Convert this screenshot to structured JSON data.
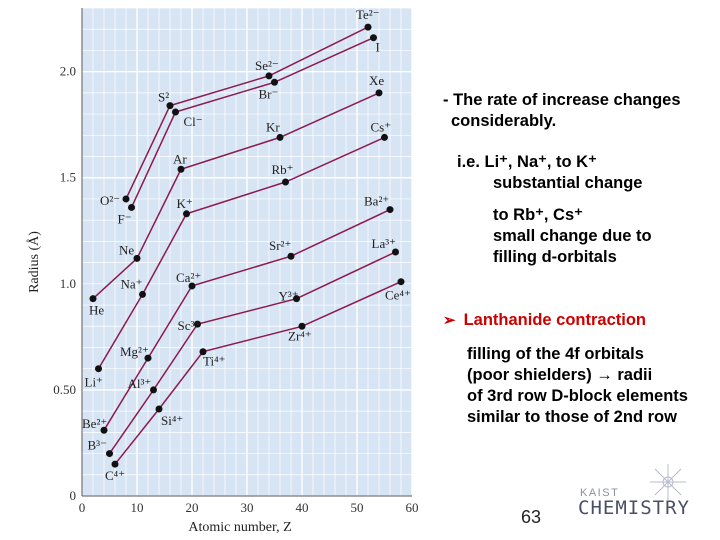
{
  "chart_data": {
    "type": "line",
    "xlabel": "Atomic number, Z",
    "ylabel": "Radius (Å)",
    "xlim": [
      0,
      60
    ],
    "ylim": [
      0,
      2.3
    ],
    "xticks": [
      "0",
      "10",
      "20",
      "30",
      "40",
      "50",
      "60"
    ],
    "yticks": [
      "0",
      "0.50",
      "1.0",
      "1.5",
      "2.0"
    ],
    "grid": true,
    "line_color": "#8b1a4f",
    "panel_color": "#d7e4f4",
    "series": [
      {
        "points": [
          [
            8,
            1.4
          ],
          [
            16,
            1.84
          ],
          [
            34,
            1.98
          ],
          [
            52,
            2.21
          ]
        ],
        "labels": [
          "O²⁻",
          "S²",
          "Se²⁻",
          "Te²⁻"
        ]
      },
      {
        "points": [
          [
            9,
            1.36
          ],
          [
            17,
            1.81
          ],
          [
            35,
            1.95
          ],
          [
            53,
            2.16
          ]
        ],
        "labels": [
          "F⁻",
          "Cl⁻",
          "Br⁻",
          "I"
        ]
      },
      {
        "points": [
          [
            2,
            0.93
          ],
          [
            10,
            1.12
          ],
          [
            18,
            1.54
          ],
          [
            36,
            1.69
          ],
          [
            54,
            1.9
          ]
        ],
        "labels": [
          "He",
          "Ne",
          "Ar",
          "Kr",
          "Xe"
        ]
      },
      {
        "points": [
          [
            3,
            0.6
          ],
          [
            11,
            0.95
          ],
          [
            19,
            1.33
          ],
          [
            37,
            1.48
          ],
          [
            55,
            1.69
          ]
        ],
        "labels": [
          "Li⁺",
          "Na⁺",
          "K⁺",
          "Rb⁺",
          "Cs⁺"
        ]
      },
      {
        "points": [
          [
            4,
            0.31
          ],
          [
            12,
            0.65
          ],
          [
            20,
            0.99
          ],
          [
            38,
            1.13
          ],
          [
            56,
            1.35
          ]
        ],
        "labels": [
          "Be²⁺",
          "Mg²⁺",
          "Ca²⁺",
          "Sr²⁺",
          "Ba²⁺"
        ]
      },
      {
        "points": [
          [
            5,
            0.2
          ],
          [
            13,
            0.5
          ],
          [
            21,
            0.81
          ],
          [
            39,
            0.93
          ],
          [
            57,
            1.15
          ]
        ],
        "labels": [
          "B³⁻",
          "Al³⁺",
          "Sc³⁺",
          "Y³⁺",
          "La³⁺"
        ]
      },
      {
        "points": [
          [
            6,
            0.15
          ],
          [
            14,
            0.41
          ],
          [
            22,
            0.68
          ],
          [
            40,
            0.8
          ],
          [
            58,
            1.01
          ]
        ],
        "labels": [
          "C⁴⁺",
          "Si⁴⁺",
          "Ti⁴⁺",
          "Zr⁴⁺",
          "Ce⁴⁺"
        ]
      }
    ]
  },
  "notes": {
    "line1": "- The rate of increase changes",
    "line2": "considerably.",
    "ie_line": "i.e. Li⁺, Na⁺, to K⁺",
    "substantial": "substantial change",
    "to_rb": "to Rb⁺, Cs⁺",
    "small_change": "small change due to",
    "filling_d": "filling d-orbitals",
    "lanthanide_title": "Lanthanide contraction",
    "lanth_line1": "filling of the 4f orbitals",
    "lanth_line2": "(poor shielders) → radii",
    "lanth_line3": "of 3rd row D-block elements",
    "lanth_line4": "similar to those of 2nd row"
  },
  "logo": {
    "top": "KAIST",
    "main": "CHEMISTRY"
  },
  "page_number": "63"
}
